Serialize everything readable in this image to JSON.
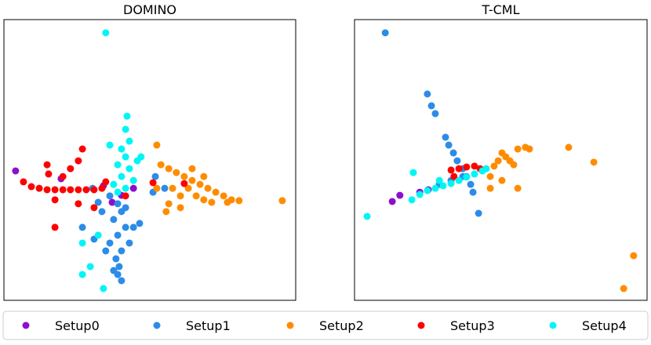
{
  "chart_data": [
    {
      "type": "scatter",
      "title": "DOMINO",
      "xlim": [
        0,
        100
      ],
      "ylim": [
        0,
        100
      ],
      "legend": "bottom",
      "series": [
        {
          "name": "Setup0",
          "color": "#8c0fd0",
          "x": [
            4.0,
            19.6,
            34.1,
            44.4,
            37.1,
            40.3
          ],
          "y": [
            46.1,
            43.3,
            40.8,
            39.9,
            34.9,
            37.4
          ]
        },
        {
          "name": "Setup1",
          "color": "#2c8ce8",
          "x": [
            39.0,
            40.3,
            37.6,
            41.7,
            39.0,
            36.3,
            40.3,
            38.4,
            39.5,
            39.0,
            40.3,
            34.9,
            30.9,
            26.9,
            44.4,
            46.5,
            41.7,
            33.6,
            32.3,
            30.4,
            51.9,
            51.1,
            55.1,
            36.3,
            43.0,
            37.6
          ],
          "y": [
            34.4,
            31.6,
            28.8,
            26.0,
            23.2,
            20.4,
            17.6,
            14.8,
            12.0,
            9.2,
            7.0,
            17.6,
            21.8,
            26.0,
            26.0,
            27.4,
            33.0,
            31.6,
            34.9,
            39.9,
            44.1,
            38.5,
            39.9,
            37.2,
            20.4,
            10.6
          ]
        },
        {
          "name": "Setup2",
          "color": "#ff8c00",
          "x": [
            52.4,
            53.8,
            56.5,
            59.1,
            61.8,
            64.5,
            67.2,
            69.9,
            72.6,
            75.3,
            78.0,
            80.6,
            63.2,
            65.9,
            68.5,
            57.8,
            60.5,
            56.5,
            55.6,
            60.5,
            71.2,
            76.6,
            95.4,
            52.4,
            64.5,
            68.5
          ],
          "y": [
            55.3,
            48.3,
            46.9,
            45.5,
            44.1,
            42.7,
            41.3,
            39.9,
            38.5,
            37.2,
            35.8,
            35.5,
            39.9,
            37.2,
            35.8,
            39.9,
            37.2,
            34.4,
            31.6,
            33.0,
            34.9,
            34.9,
            35.5,
            39.9,
            46.9,
            44.1
          ]
        },
        {
          "name": "Setup3",
          "color": "#ff0000",
          "x": [
            6.7,
            9.4,
            12.1,
            14.8,
            17.5,
            20.2,
            22.8,
            25.5,
            28.2,
            30.9,
            33.6,
            14.8,
            22.8,
            25.5,
            26.9,
            15.3,
            20.2,
            17.5,
            25.5,
            30.9,
            17.5,
            34.9,
            51.1,
            61.8,
            41.7
          ],
          "y": [
            42.2,
            40.5,
            39.9,
            39.4,
            39.4,
            39.4,
            39.4,
            39.4,
            39.4,
            39.4,
            39.9,
            48.3,
            46.9,
            49.7,
            53.9,
            45.0,
            44.1,
            35.8,
            34.4,
            33.0,
            26.0,
            42.2,
            41.9,
            41.6,
            37.2
          ]
        },
        {
          "name": "Setup4",
          "color": "#00f5f5",
          "x": [
            42.2,
            41.7,
            43.0,
            40.3,
            41.7,
            39.0,
            43.0,
            40.3,
            37.6,
            44.4,
            41.7,
            45.7,
            47.0,
            36.3,
            34.9,
            34.1,
            26.9,
            29.6,
            26.9,
            32.3,
            39.0
          ],
          "y": [
            65.6,
            60.9,
            56.7,
            53.9,
            51.1,
            48.3,
            46.9,
            44.1,
            41.3,
            42.7,
            39.9,
            49.7,
            51.1,
            55.3,
            95.3,
            4.2,
            9.2,
            12.0,
            20.4,
            23.2,
            38.5
          ]
        }
      ]
    },
    {
      "type": "scatter",
      "title": "T-CML",
      "xlim": [
        0,
        100
      ],
      "ylim": [
        0,
        100
      ],
      "series": [
        {
          "color": "#8c0fd0",
          "x": [
            12.9,
            15.5,
            22.3,
            25.2
          ],
          "y": [
            35.2,
            37.4,
            38.5,
            39.4
          ]
        },
        {
          "color": "#2c8ce8",
          "x": [
            10.5,
            24.9,
            26.3,
            27.6,
            31.1,
            32.2,
            33.8,
            35.1,
            37.0,
            38.3,
            39.7,
            40.5,
            42.4,
            37.0,
            29.0,
            33.0
          ],
          "y": [
            95.3,
            73.5,
            69.3,
            66.5,
            58.1,
            55.3,
            52.5,
            49.7,
            46.9,
            44.1,
            41.3,
            38.5,
            31.0,
            44.1,
            41.3,
            42.7
          ]
        },
        {
          "color": "#ff8c00",
          "x": [
            45.0,
            49.1,
            51.7,
            55.8,
            58.4,
            59.8,
            54.4,
            50.4,
            46.4,
            46.4,
            50.4,
            55.8,
            73.2,
            81.8,
            95.4,
            92.0,
            47.7,
            53.1
          ],
          "y": [
            46.9,
            49.7,
            51.1,
            53.9,
            54.5,
            53.9,
            48.3,
            52.5,
            44.1,
            39.9,
            42.7,
            39.9,
            54.5,
            49.2,
            15.9,
            4.2,
            47.8,
            49.7
          ]
        },
        {
          "color": "#ff0000",
          "x": [
            33.0,
            35.7,
            38.3,
            41.0,
            42.9,
            34.0
          ],
          "y": [
            46.4,
            46.9,
            47.5,
            47.8,
            46.9,
            44.1
          ]
        },
        {
          "color": "#00f5f5",
          "x": [
            19.6,
            22.3,
            24.9,
            27.6,
            30.3,
            33.0,
            35.7,
            38.3,
            41.0,
            43.7,
            45.0,
            20.1,
            4.3,
            29.0
          ],
          "y": [
            35.8,
            37.7,
            39.1,
            39.9,
            40.8,
            41.6,
            42.7,
            43.9,
            45.0,
            46.1,
            46.9,
            45.5,
            29.9,
            42.7
          ]
        }
      ]
    }
  ]
}
